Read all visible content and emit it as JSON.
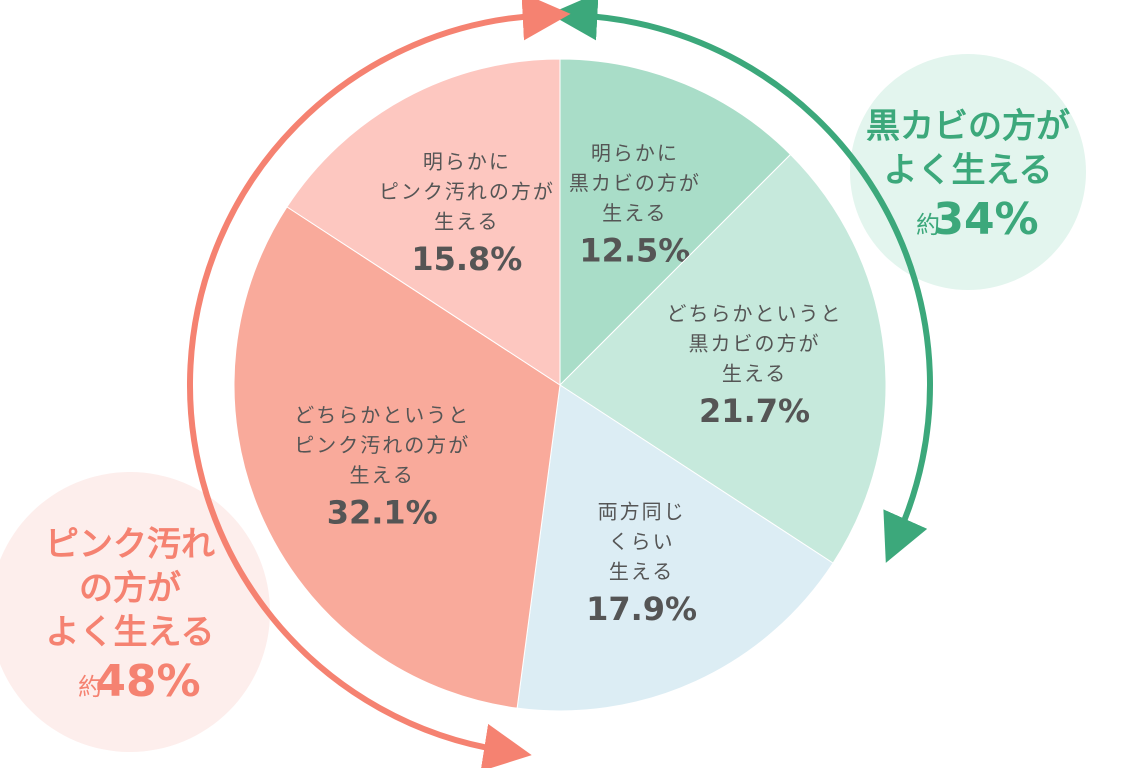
{
  "chart_data": {
    "type": "pie",
    "categories": [
      [
        "明らかに",
        "黒カビの方が",
        "生える"
      ],
      [
        "どちらかというと",
        "黒カビの方が",
        "生える"
      ],
      [
        "両方同じ",
        "くらい",
        "生える"
      ],
      [
        "どちらかというと",
        "ピンク汚れの方が",
        "生える"
      ],
      [
        "明らかに",
        "ピンク汚れの方が",
        "生える"
      ]
    ],
    "values": [
      12.5,
      21.7,
      17.9,
      32.1,
      15.8
    ],
    "value_labels": [
      "12.5%",
      "21.7%",
      "17.9%",
      "32.1%",
      "15.8%"
    ],
    "colors": [
      "#a9ddc8",
      "#c6e9dc",
      "#dcedf4",
      "#f9aa9b",
      "#fdc7c0"
    ],
    "annotations": [
      {
        "lines": [
          "黒カビの方が",
          "よく生える"
        ],
        "prefix": "約",
        "value": "34%",
        "color": "#3ca87b",
        "bg": "#e3f5ee"
      },
      {
        "lines": [
          "ピンク汚れ",
          "の方が",
          "よく生える"
        ],
        "prefix": "約",
        "value": "48%",
        "color": "#f58271",
        "bg": "#fdeeec"
      }
    ]
  }
}
